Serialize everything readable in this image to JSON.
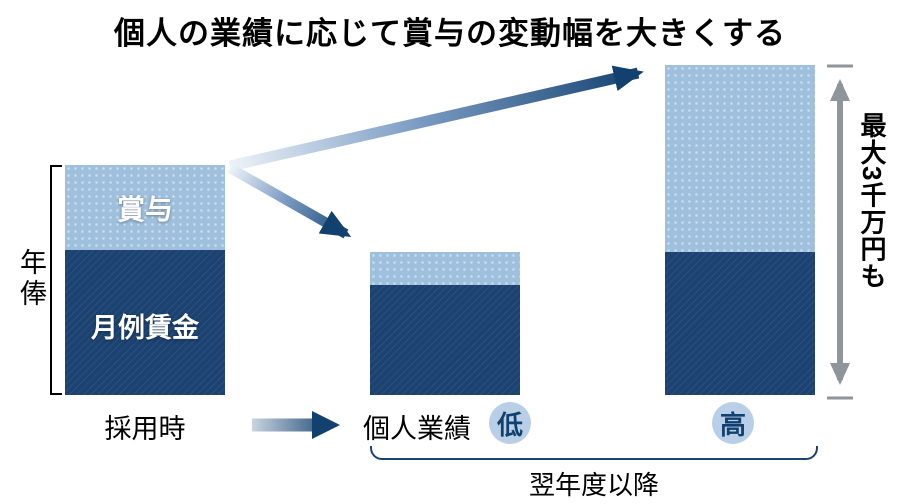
{
  "title": "個人の業績に応じて賞与の変動幅を大きくする",
  "labels": {
    "bonus": "賞与",
    "monthly_wage": "月例賃金",
    "annual_salary": "年俸",
    "at_hiring": "採用時",
    "individual_performance": "個人業績",
    "low": "低",
    "high": "高",
    "max_note": "最大3千万円も",
    "next_year": "翌年度以降"
  },
  "colors": {
    "dark_blue": "#1b4270",
    "light_blue": "#9fc0dd",
    "circle_blue": "#b9cfe7",
    "arrow_dark": "#12406f",
    "arrow_light": "#dde7f1",
    "measure_gray": "#8f959b"
  },
  "chart_data": {
    "type": "bar",
    "stacked": true,
    "orientation": "vertical",
    "categories": [
      "採用時",
      "個人業績 低",
      "個人業績 高（翌年度以降）"
    ],
    "series": [
      {
        "name": "月例賃金",
        "color": "#1b4270",
        "values": [
          145,
          110,
          143
        ]
      },
      {
        "name": "賞与",
        "color": "#9fc0dd",
        "values": [
          85,
          33,
          187
        ]
      }
    ],
    "unit": "relative height (px), no numeric axis shown",
    "annotations": [
      "矢印: 採用時の年俸から翌年度の業績低/高の年俸へ変動",
      "最大3千万円も",
      "翌年度以降"
    ],
    "legend_position": "in-bar labels",
    "grid": false
  }
}
